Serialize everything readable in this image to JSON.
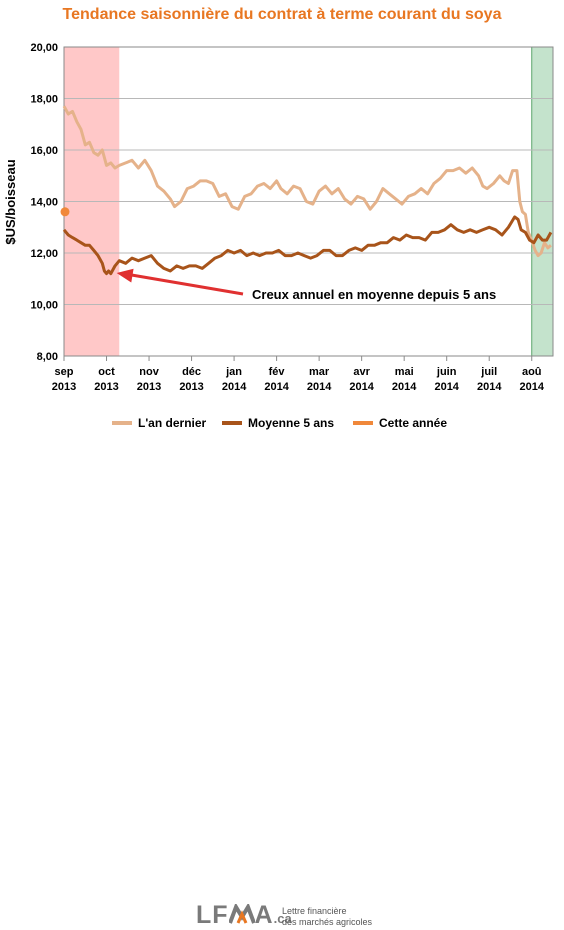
{
  "colors": {
    "title": "#e87722",
    "last_year": "#e5b28a",
    "avg5": "#a8541a",
    "this_year": "#f0883a",
    "red_band": "#ffc8c8",
    "green_band": "#c4e3cc",
    "green_edge": "#5aa56a",
    "arrow": "#e03030",
    "grid": "#b8b8b8",
    "logo": "#7a7a7a",
    "logo_accent": "#e87722"
  },
  "chart_data": {
    "type": "line",
    "title": "Tendance saisonnière du contrat à terme courant du soya",
    "ylabel": "$US/boisseau",
    "xlabel": "",
    "ylim": [
      8,
      20
    ],
    "xlim": [
      0,
      11.5
    ],
    "grid": true,
    "legend_position": "bottom",
    "y_ticks": [
      "8,00",
      "10,00",
      "12,00",
      "14,00",
      "16,00",
      "18,00",
      "20,00"
    ],
    "x_ticks": [
      {
        "month": "sep",
        "year": "2013"
      },
      {
        "month": "oct",
        "year": "2013"
      },
      {
        "month": "nov",
        "year": "2013"
      },
      {
        "month": "déc",
        "year": "2013"
      },
      {
        "month": "jan",
        "year": "2014"
      },
      {
        "month": "fév",
        "year": "2014"
      },
      {
        "month": "mar",
        "year": "2014"
      },
      {
        "month": "avr",
        "year": "2014"
      },
      {
        "month": "mai",
        "year": "2014"
      },
      {
        "month": "juin",
        "year": "2014"
      },
      {
        "month": "juil",
        "year": "2014"
      },
      {
        "month": "aoû",
        "year": "2014"
      }
    ],
    "highlight_bands": [
      {
        "from": 0,
        "to": 1.3,
        "color": "#ffc8c8"
      },
      {
        "from": 11,
        "to": 11.5,
        "color": "#c4e3cc"
      }
    ],
    "annotation": {
      "text": "Creux annuel en moyenne depuis 5 ans",
      "target_x": 1.05,
      "target_y": 11.3
    },
    "series": [
      {
        "name": "L'an dernier",
        "color": "#e5b28a",
        "points": [
          [
            0,
            17.7
          ],
          [
            0.1,
            17.4
          ],
          [
            0.2,
            17.5
          ],
          [
            0.3,
            17.1
          ],
          [
            0.4,
            16.8
          ],
          [
            0.5,
            16.2
          ],
          [
            0.6,
            16.3
          ],
          [
            0.7,
            15.9
          ],
          [
            0.8,
            15.8
          ],
          [
            0.9,
            16.0
          ],
          [
            1.0,
            15.4
          ],
          [
            1.1,
            15.5
          ],
          [
            1.2,
            15.3
          ],
          [
            1.3,
            15.4
          ],
          [
            1.45,
            15.5
          ],
          [
            1.6,
            15.6
          ],
          [
            1.75,
            15.3
          ],
          [
            1.9,
            15.6
          ],
          [
            2.05,
            15.2
          ],
          [
            2.2,
            14.6
          ],
          [
            2.35,
            14.4
          ],
          [
            2.5,
            14.1
          ],
          [
            2.6,
            13.8
          ],
          [
            2.75,
            14.0
          ],
          [
            2.9,
            14.5
          ],
          [
            3.05,
            14.6
          ],
          [
            3.2,
            14.8
          ],
          [
            3.35,
            14.8
          ],
          [
            3.5,
            14.7
          ],
          [
            3.65,
            14.2
          ],
          [
            3.8,
            14.3
          ],
          [
            3.95,
            13.8
          ],
          [
            4.1,
            13.7
          ],
          [
            4.25,
            14.2
          ],
          [
            4.4,
            14.3
          ],
          [
            4.55,
            14.6
          ],
          [
            4.7,
            14.7
          ],
          [
            4.85,
            14.5
          ],
          [
            5.0,
            14.8
          ],
          [
            5.1,
            14.5
          ],
          [
            5.25,
            14.3
          ],
          [
            5.4,
            14.6
          ],
          [
            5.55,
            14.5
          ],
          [
            5.7,
            14.0
          ],
          [
            5.85,
            13.9
          ],
          [
            6.0,
            14.4
          ],
          [
            6.15,
            14.6
          ],
          [
            6.3,
            14.3
          ],
          [
            6.45,
            14.5
          ],
          [
            6.6,
            14.1
          ],
          [
            6.75,
            13.9
          ],
          [
            6.9,
            14.2
          ],
          [
            7.05,
            14.1
          ],
          [
            7.2,
            13.7
          ],
          [
            7.35,
            14.0
          ],
          [
            7.5,
            14.5
          ],
          [
            7.65,
            14.3
          ],
          [
            7.8,
            14.1
          ],
          [
            7.95,
            13.9
          ],
          [
            8.1,
            14.2
          ],
          [
            8.25,
            14.3
          ],
          [
            8.4,
            14.5
          ],
          [
            8.55,
            14.3
          ],
          [
            8.7,
            14.7
          ],
          [
            8.85,
            14.9
          ],
          [
            9.0,
            15.2
          ],
          [
            9.15,
            15.2
          ],
          [
            9.3,
            15.3
          ],
          [
            9.45,
            15.1
          ],
          [
            9.6,
            15.3
          ],
          [
            9.75,
            15.0
          ],
          [
            9.85,
            14.6
          ],
          [
            9.95,
            14.5
          ],
          [
            10.1,
            14.7
          ],
          [
            10.25,
            15.0
          ],
          [
            10.35,
            14.8
          ],
          [
            10.45,
            14.7
          ],
          [
            10.55,
            15.2
          ],
          [
            10.65,
            15.2
          ],
          [
            10.72,
            14.0
          ],
          [
            10.78,
            13.6
          ],
          [
            10.85,
            13.5
          ],
          [
            10.92,
            12.8
          ],
          [
            11.0,
            12.5
          ],
          [
            11.08,
            12.1
          ],
          [
            11.15,
            11.9
          ],
          [
            11.22,
            12.0
          ],
          [
            11.3,
            12.4
          ],
          [
            11.38,
            12.2
          ],
          [
            11.45,
            12.3
          ]
        ]
      },
      {
        "name": "Moyenne 5 ans",
        "color": "#a8541a",
        "points": [
          [
            0,
            12.9
          ],
          [
            0.1,
            12.7
          ],
          [
            0.2,
            12.6
          ],
          [
            0.3,
            12.5
          ],
          [
            0.4,
            12.4
          ],
          [
            0.5,
            12.3
          ],
          [
            0.6,
            12.3
          ],
          [
            0.7,
            12.1
          ],
          [
            0.8,
            11.9
          ],
          [
            0.9,
            11.6
          ],
          [
            0.95,
            11.3
          ],
          [
            1.0,
            11.2
          ],
          [
            1.05,
            11.3
          ],
          [
            1.1,
            11.2
          ],
          [
            1.2,
            11.5
          ],
          [
            1.3,
            11.7
          ],
          [
            1.45,
            11.6
          ],
          [
            1.6,
            11.8
          ],
          [
            1.75,
            11.7
          ],
          [
            1.9,
            11.8
          ],
          [
            2.05,
            11.9
          ],
          [
            2.2,
            11.6
          ],
          [
            2.35,
            11.4
          ],
          [
            2.5,
            11.3
          ],
          [
            2.65,
            11.5
          ],
          [
            2.8,
            11.4
          ],
          [
            2.95,
            11.5
          ],
          [
            3.1,
            11.5
          ],
          [
            3.25,
            11.4
          ],
          [
            3.4,
            11.6
          ],
          [
            3.55,
            11.8
          ],
          [
            3.7,
            11.9
          ],
          [
            3.85,
            12.1
          ],
          [
            4.0,
            12.0
          ],
          [
            4.15,
            12.1
          ],
          [
            4.3,
            11.9
          ],
          [
            4.45,
            12.0
          ],
          [
            4.6,
            11.9
          ],
          [
            4.75,
            12.0
          ],
          [
            4.9,
            12.0
          ],
          [
            5.05,
            12.1
          ],
          [
            5.2,
            11.9
          ],
          [
            5.35,
            11.9
          ],
          [
            5.5,
            12.0
          ],
          [
            5.65,
            11.9
          ],
          [
            5.8,
            11.8
          ],
          [
            5.95,
            11.9
          ],
          [
            6.1,
            12.1
          ],
          [
            6.25,
            12.1
          ],
          [
            6.4,
            11.9
          ],
          [
            6.55,
            11.9
          ],
          [
            6.7,
            12.1
          ],
          [
            6.85,
            12.2
          ],
          [
            7.0,
            12.1
          ],
          [
            7.15,
            12.3
          ],
          [
            7.3,
            12.3
          ],
          [
            7.45,
            12.4
          ],
          [
            7.6,
            12.4
          ],
          [
            7.75,
            12.6
          ],
          [
            7.9,
            12.5
          ],
          [
            8.05,
            12.7
          ],
          [
            8.2,
            12.6
          ],
          [
            8.35,
            12.6
          ],
          [
            8.5,
            12.5
          ],
          [
            8.65,
            12.8
          ],
          [
            8.8,
            12.8
          ],
          [
            8.95,
            12.9
          ],
          [
            9.1,
            13.1
          ],
          [
            9.25,
            12.9
          ],
          [
            9.4,
            12.8
          ],
          [
            9.55,
            12.9
          ],
          [
            9.7,
            12.8
          ],
          [
            9.85,
            12.9
          ],
          [
            10.0,
            13.0
          ],
          [
            10.15,
            12.9
          ],
          [
            10.3,
            12.7
          ],
          [
            10.45,
            13.0
          ],
          [
            10.6,
            13.4
          ],
          [
            10.68,
            13.3
          ],
          [
            10.75,
            12.9
          ],
          [
            10.85,
            12.8
          ],
          [
            10.95,
            12.5
          ],
          [
            11.05,
            12.4
          ],
          [
            11.15,
            12.7
          ],
          [
            11.25,
            12.5
          ],
          [
            11.35,
            12.5
          ],
          [
            11.45,
            12.8
          ]
        ]
      },
      {
        "name": "Cette année",
        "color": "#f0883a",
        "points": [
          [
            0,
            13.6
          ]
        ]
      }
    ]
  },
  "footer": {
    "logo_prefix": "LF",
    "logo_suffix": "A",
    "logo_tld": ".ca",
    "tagline_line1": "Lettre financière",
    "tagline_line2": "des marchés agricoles"
  }
}
